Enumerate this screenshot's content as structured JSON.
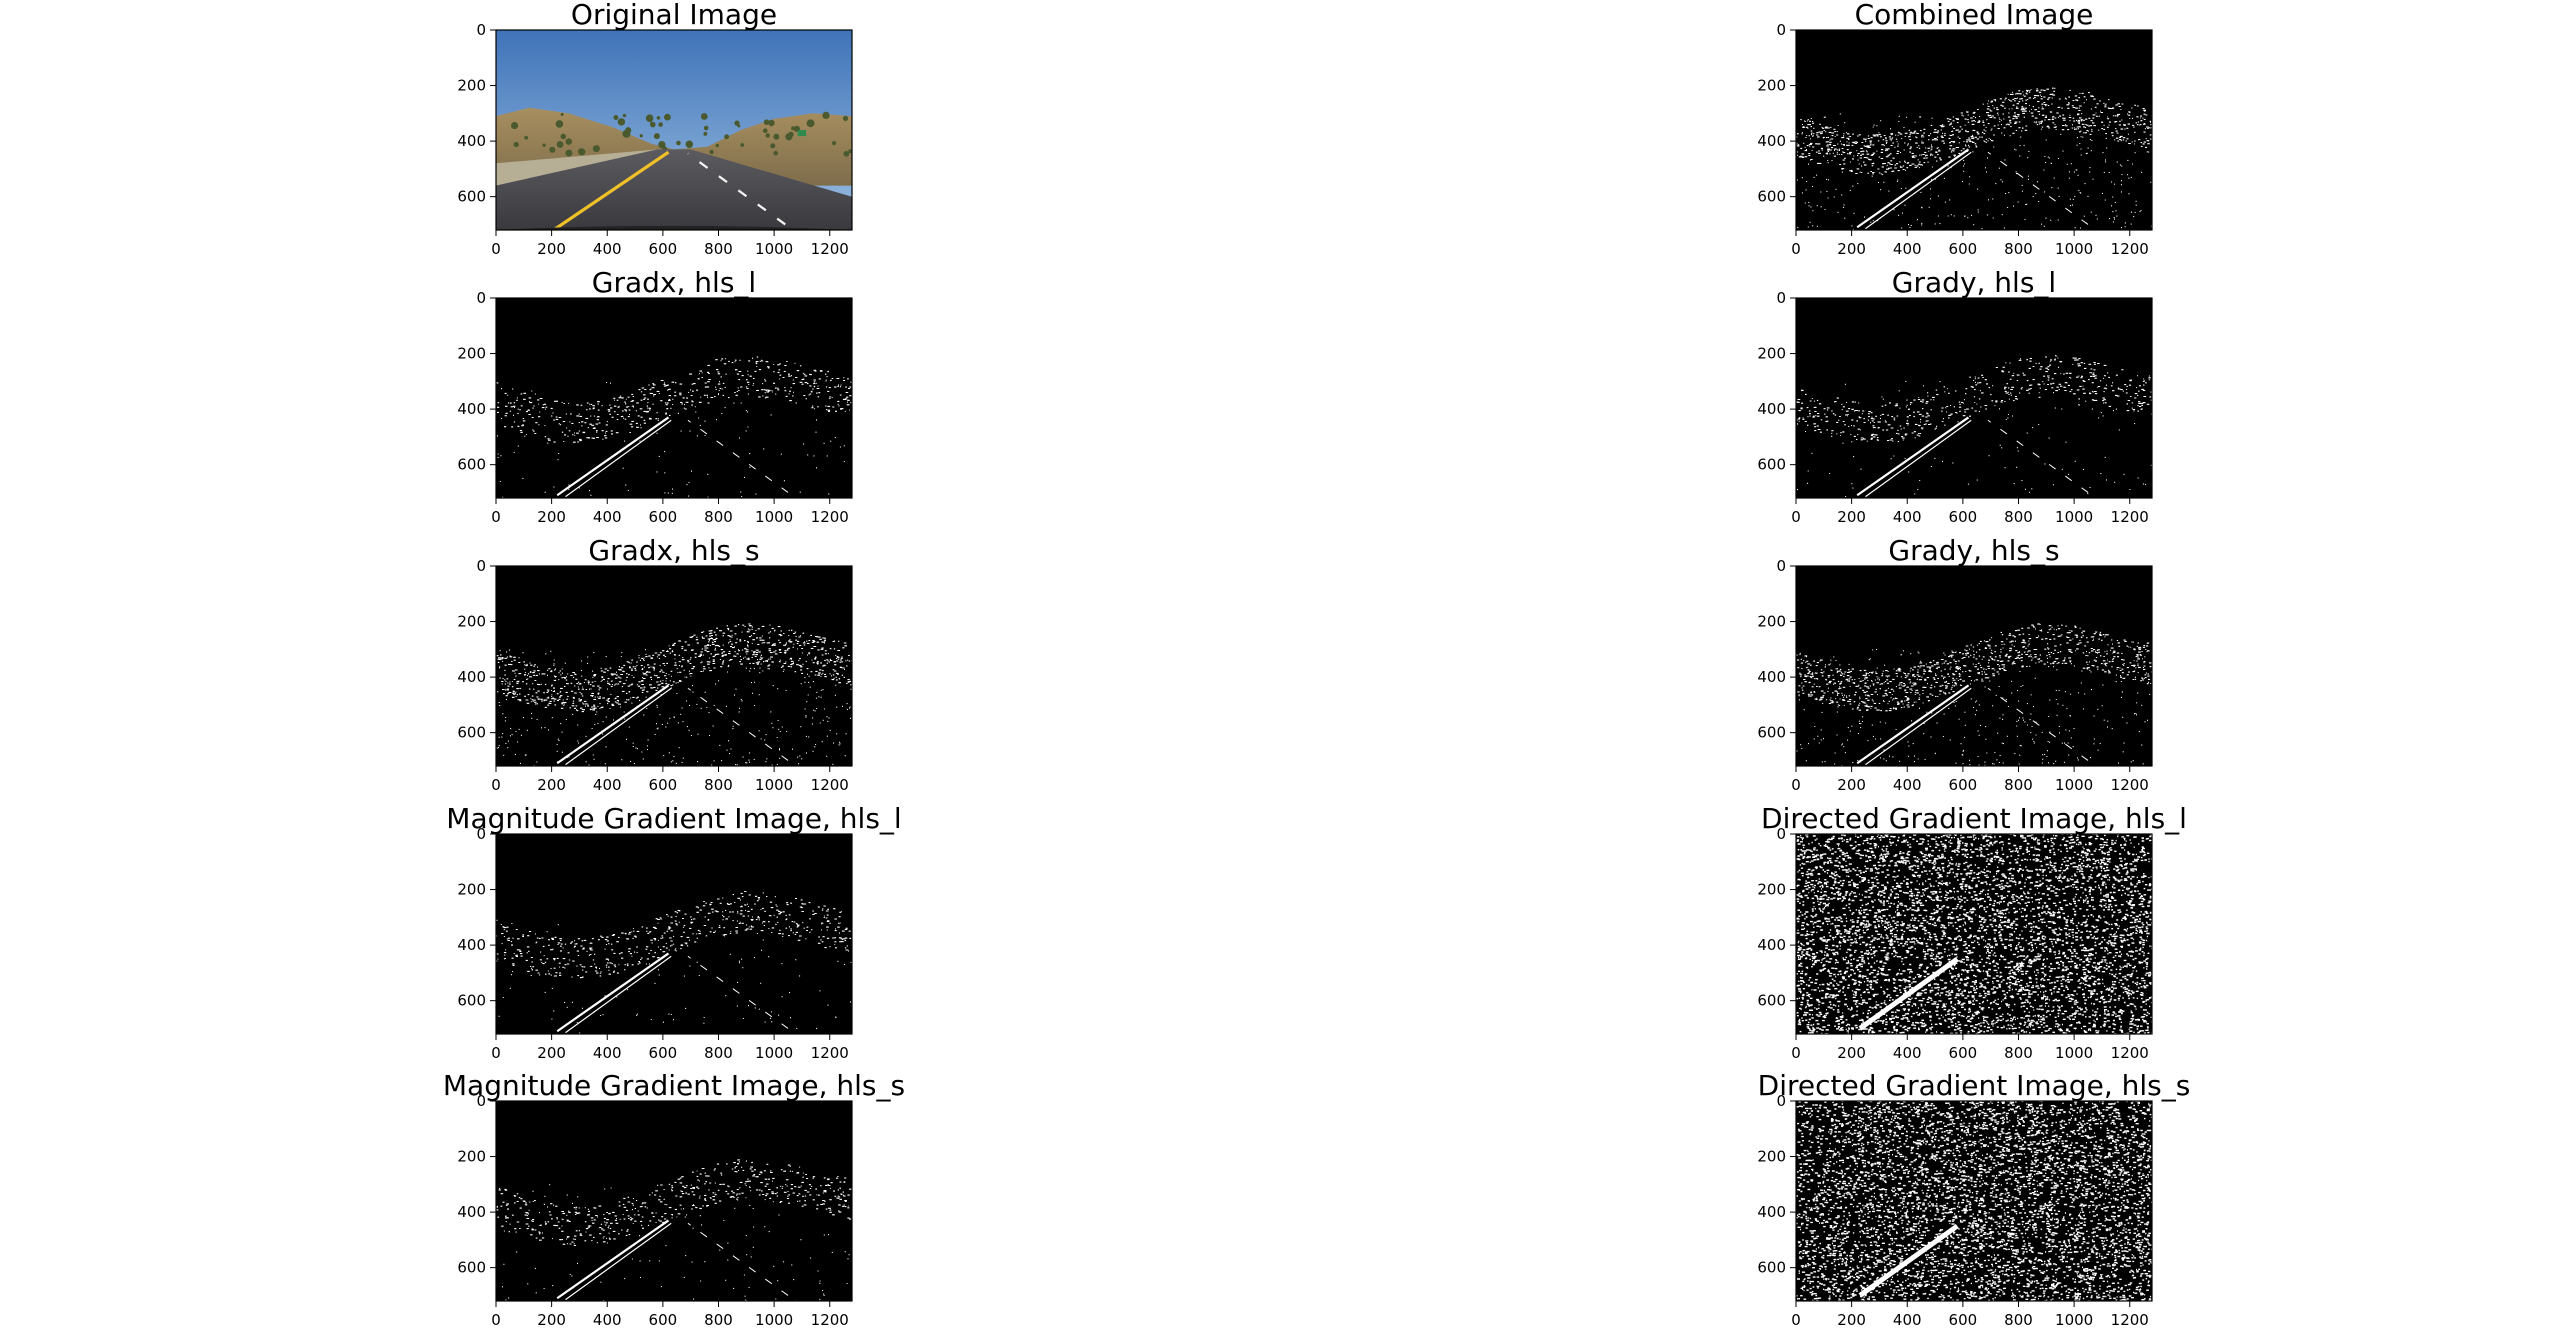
{
  "figure": {
    "background": "#ffffff",
    "text_color": "#000000"
  },
  "chart_data": [
    {
      "type": "image",
      "title": "Original Image",
      "content": "photo",
      "x_ticks": [
        0,
        200,
        400,
        600,
        800,
        1000,
        1200
      ],
      "y_ticks": [
        0,
        200,
        400,
        600
      ],
      "xlim": [
        0,
        1280
      ],
      "ylim": [
        720,
        0
      ]
    },
    {
      "type": "image",
      "title": "Combined Image",
      "content": "binary",
      "x_ticks": [
        0,
        200,
        400,
        600,
        800,
        1000,
        1200
      ],
      "y_ticks": [
        0,
        200,
        400,
        600
      ],
      "xlim": [
        0,
        1280
      ],
      "ylim": [
        720,
        0
      ]
    },
    {
      "type": "image",
      "title": "Gradx, hls_l",
      "content": "binary",
      "x_ticks": [
        0,
        200,
        400,
        600,
        800,
        1000,
        1200
      ],
      "y_ticks": [
        0,
        200,
        400,
        600
      ],
      "xlim": [
        0,
        1280
      ],
      "ylim": [
        720,
        0
      ]
    },
    {
      "type": "image",
      "title": "Grady, hls_l",
      "content": "binary",
      "x_ticks": [
        0,
        200,
        400,
        600,
        800,
        1000,
        1200
      ],
      "y_ticks": [
        0,
        200,
        400,
        600
      ],
      "xlim": [
        0,
        1280
      ],
      "ylim": [
        720,
        0
      ]
    },
    {
      "type": "image",
      "title": "Gradx, hls_s",
      "content": "binary",
      "x_ticks": [
        0,
        200,
        400,
        600,
        800,
        1000,
        1200
      ],
      "y_ticks": [
        0,
        200,
        400,
        600
      ],
      "xlim": [
        0,
        1280
      ],
      "ylim": [
        720,
        0
      ]
    },
    {
      "type": "image",
      "title": "Grady, hls_s",
      "content": "binary",
      "x_ticks": [
        0,
        200,
        400,
        600,
        800,
        1000,
        1200
      ],
      "y_ticks": [
        0,
        200,
        400,
        600
      ],
      "xlim": [
        0,
        1280
      ],
      "ylim": [
        720,
        0
      ]
    },
    {
      "type": "image",
      "title": "Magnitude Gradient Image, hls_l",
      "content": "binary",
      "x_ticks": [
        0,
        200,
        400,
        600,
        800,
        1000,
        1200
      ],
      "y_ticks": [
        0,
        200,
        400,
        600
      ],
      "xlim": [
        0,
        1280
      ],
      "ylim": [
        720,
        0
      ]
    },
    {
      "type": "image",
      "title": "Directed Gradient Image, hls_l",
      "content": "noise",
      "x_ticks": [
        0,
        200,
        400,
        600,
        800,
        1000,
        1200
      ],
      "y_ticks": [
        0,
        200,
        400,
        600
      ],
      "xlim": [
        0,
        1280
      ],
      "ylim": [
        720,
        0
      ]
    },
    {
      "type": "image",
      "title": "Magnitude Gradient Image, hls_s",
      "content": "binary",
      "x_ticks": [
        0,
        200,
        400,
        600,
        800,
        1000,
        1200
      ],
      "y_ticks": [
        0,
        200,
        400,
        600
      ],
      "xlim": [
        0,
        1280
      ],
      "ylim": [
        720,
        0
      ]
    },
    {
      "type": "image",
      "title": "Directed Gradient Image, hls_s",
      "content": "noise",
      "x_ticks": [
        0,
        200,
        400,
        600,
        800,
        1000,
        1200
      ],
      "y_ticks": [
        0,
        200,
        400,
        600
      ],
      "xlim": [
        0,
        1280
      ],
      "ylim": [
        720,
        0
      ]
    }
  ]
}
